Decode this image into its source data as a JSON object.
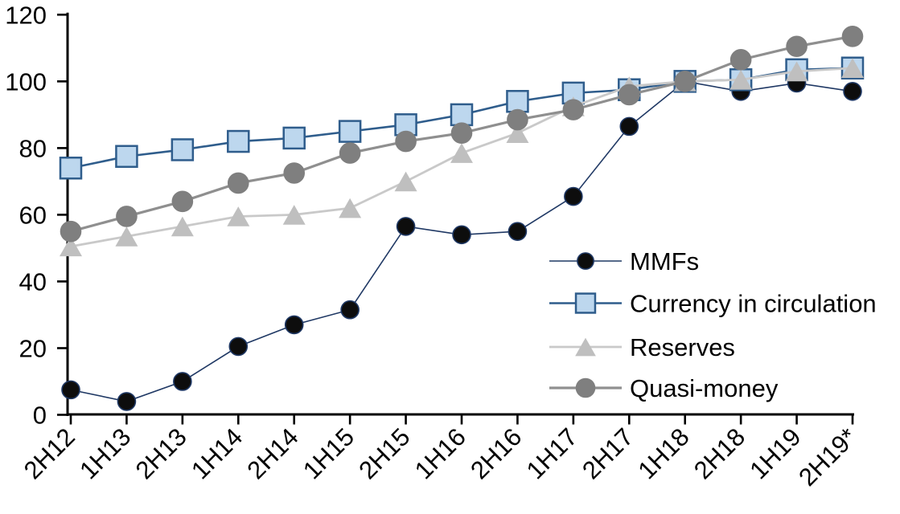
{
  "chart_data": {
    "type": "line",
    "title": "",
    "xlabel": "",
    "ylabel": "",
    "ylim": [
      0,
      120
    ],
    "ytick_step": 20,
    "grid": false,
    "legend_position": "inside-right",
    "axis_color": "#000000",
    "categories": [
      "2H12",
      "1H13",
      "2H13",
      "1H14",
      "2H14",
      "1H15",
      "2H15",
      "1H16",
      "2H16",
      "1H17",
      "2H17",
      "1H18",
      "2H18",
      "1H19",
      "2H19*"
    ],
    "series": [
      {
        "name": "MMFs",
        "marker": "circle",
        "marker_size": 22,
        "marker_fill": "#0d0d0d",
        "marker_stroke": "#1F3864",
        "line_color": "#1F3864",
        "line_width": 1.6,
        "values": [
          7.5,
          4,
          10,
          20.5,
          27,
          31.5,
          56.5,
          54,
          55,
          65.5,
          86.5,
          100,
          97,
          99.5,
          97
        ]
      },
      {
        "name": "Currency in circulation",
        "marker": "square",
        "marker_size": 26,
        "marker_fill": "#BDD7EE",
        "marker_stroke": "#2F5D8C",
        "line_color": "#2F5D8C",
        "line_width": 2.6,
        "values": [
          74,
          77.5,
          79.5,
          82,
          83,
          85,
          87,
          90,
          94,
          96.5,
          97.5,
          100,
          100.5,
          103.5,
          104
        ]
      },
      {
        "name": "Reserves",
        "marker": "triangle",
        "marker_size": 28,
        "marker_fill": "#BFBFBF",
        "marker_stroke": "#BFBFBF",
        "line_color": "#C9C9C9",
        "line_width": 2.8,
        "values": [
          50.5,
          53.5,
          56.5,
          59.5,
          60,
          62,
          70,
          78.5,
          84.5,
          92.5,
          98.5,
          100,
          100.5,
          103,
          104
        ]
      },
      {
        "name": "Quasi-money",
        "marker": "circle",
        "marker_size": 25,
        "marker_fill": "#7F7F7F",
        "marker_stroke": "#7F7F7F",
        "line_color": "#8F8F8F",
        "line_width": 3.2,
        "values": [
          55,
          59.5,
          64,
          69.5,
          72.5,
          78.5,
          82,
          84.5,
          88.5,
          91.5,
          96,
          100,
          106.5,
          110.5,
          113.5
        ]
      }
    ]
  }
}
